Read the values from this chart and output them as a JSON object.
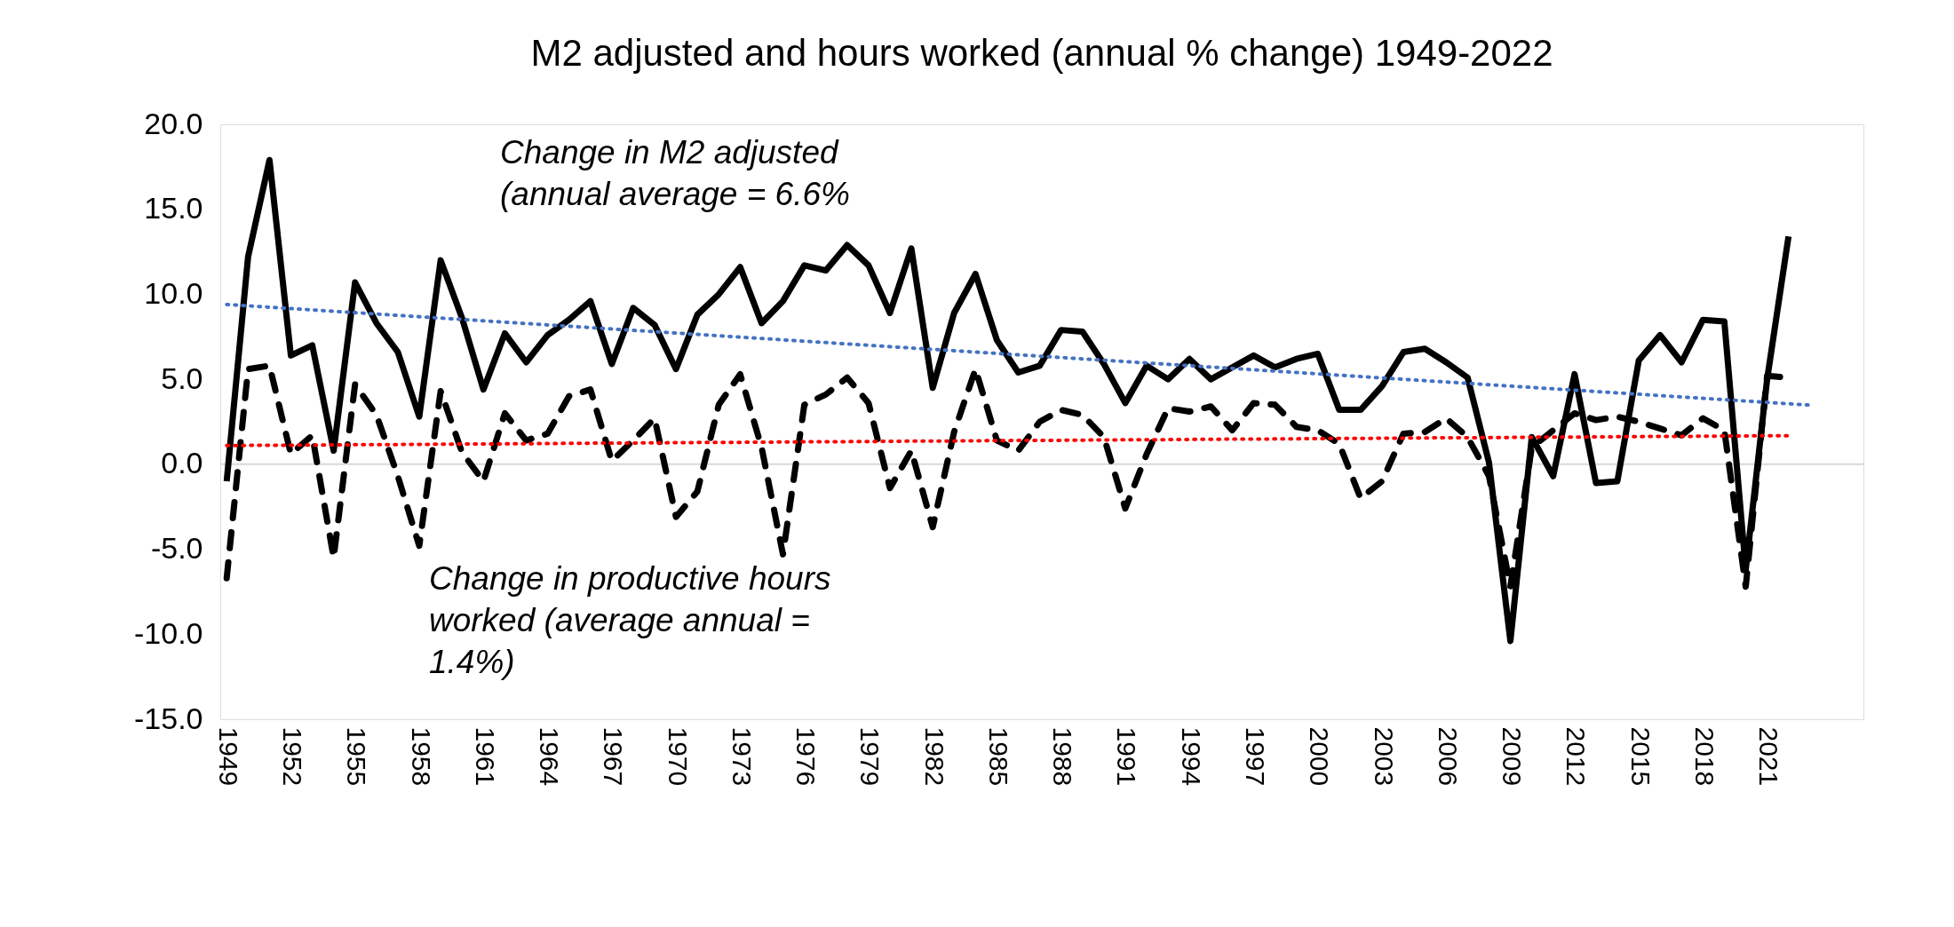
{
  "chart_data": {
    "type": "line",
    "title": "M2 adjusted and hours worked (annual % change) 1949-2022",
    "categories": [
      "1949",
      null,
      null,
      "1952",
      null,
      null,
      "1955",
      null,
      null,
      "1958",
      null,
      null,
      "1961",
      null,
      null,
      "1964",
      null,
      null,
      "1967",
      null,
      null,
      "1970",
      null,
      null,
      "1973",
      null,
      null,
      "1976",
      null,
      null,
      "1979",
      null,
      null,
      "1982",
      null,
      null,
      "1985",
      null,
      null,
      "1988",
      null,
      null,
      "1991",
      null,
      null,
      "1994",
      null,
      null,
      "1997",
      null,
      null,
      "2000",
      null,
      null,
      "2003",
      null,
      null,
      "2006",
      null,
      null,
      "2009",
      null,
      null,
      "2012",
      null,
      null,
      "2015",
      null,
      null,
      "2018",
      null,
      null,
      "2021",
      null,
      null
    ],
    "series": [
      {
        "color": "#000000",
        "line_style": "solid",
        "values": [
          -1.0,
          12.2,
          17.9,
          6.4,
          7.0,
          0.8,
          10.7,
          8.3,
          6.6,
          2.8,
          12.0,
          8.6,
          4.4,
          7.7,
          6.0,
          7.6,
          8.5,
          9.6,
          5.9,
          9.2,
          8.2,
          5.6,
          8.8,
          10.0,
          11.6,
          8.3,
          9.6,
          11.7,
          11.4,
          12.9,
          11.7,
          8.9,
          12.7,
          4.5,
          8.9,
          11.2,
          7.3,
          5.4,
          5.8,
          7.9,
          7.8,
          5.9,
          3.6,
          5.8,
          5.0,
          6.2,
          5.0,
          5.7,
          6.4,
          5.7,
          6.2,
          6.5,
          3.2,
          3.2,
          4.6,
          6.6,
          6.8,
          6.0,
          5.1,
          0.1,
          -10.4,
          1.6,
          -0.7,
          5.3,
          -1.1,
          -1.0,
          6.1,
          7.6,
          6.0,
          8.5,
          8.4,
          -6.2,
          5.0,
          13.4,
          null
        ]
      },
      {
        "color": "#000000",
        "line_style": "dashed",
        "values": [
          -6.7,
          5.6,
          5.8,
          0.6,
          1.7,
          -5.5,
          4.7,
          2.9,
          -0.7,
          -4.8,
          4.3,
          0.7,
          -1.0,
          3.0,
          1.4,
          1.8,
          4.0,
          4.4,
          0.2,
          1.4,
          2.7,
          -3.1,
          -1.6,
          3.5,
          5.3,
          1.0,
          -5.3,
          3.5,
          4.1,
          5.1,
          3.6,
          -1.4,
          0.8,
          -3.7,
          1.9,
          5.6,
          1.4,
          0.8,
          2.5,
          3.2,
          2.9,
          1.6,
          -2.6,
          0.6,
          3.3,
          3.1,
          3.4,
          2.0,
          3.6,
          3.5,
          2.2,
          2.0,
          1.2,
          -2.0,
          -1.0,
          1.8,
          1.9,
          2.7,
          1.6,
          -0.7,
          -7.2,
          1.0,
          2.0,
          3.0,
          2.6,
          2.8,
          2.5,
          2.1,
          1.7,
          2.7,
          2.0,
          -7.2,
          5.2,
          5.1,
          null
        ]
      },
      {
        "color": "#4472c4",
        "line_style": "dotted",
        "values": [
          9.4,
          9.32,
          9.24,
          9.16,
          9.08,
          9.0,
          8.92,
          8.84,
          8.76,
          8.68,
          8.6,
          8.52,
          8.44,
          8.36,
          8.28,
          8.2,
          8.12,
          8.04,
          7.96,
          7.88,
          7.8,
          7.72,
          7.64,
          7.56,
          7.48,
          7.4,
          7.32,
          7.24,
          7.16,
          7.08,
          7.0,
          6.92,
          6.84,
          6.76,
          6.68,
          6.6,
          6.52,
          6.44,
          6.36,
          6.28,
          6.2,
          6.12,
          6.04,
          5.96,
          5.88,
          5.8,
          5.72,
          5.64,
          5.56,
          5.48,
          5.4,
          5.32,
          5.24,
          5.16,
          5.08,
          5.0,
          4.92,
          4.84,
          4.76,
          4.68,
          4.6,
          4.52,
          4.44,
          4.36,
          4.28,
          4.2,
          4.12,
          4.04,
          3.96,
          3.88,
          3.8,
          3.72,
          3.64,
          3.56,
          3.48
        ]
      },
      {
        "color": "#ff0000",
        "line_style": "dotted",
        "values": [
          1.1,
          1.11,
          1.12,
          1.12,
          1.13,
          1.14,
          1.15,
          1.16,
          1.16,
          1.17,
          1.18,
          1.19,
          1.2,
          1.2,
          1.21,
          1.22,
          1.23,
          1.24,
          1.24,
          1.25,
          1.26,
          1.27,
          1.28,
          1.28,
          1.29,
          1.3,
          1.31,
          1.32,
          1.32,
          1.33,
          1.34,
          1.35,
          1.36,
          1.36,
          1.37,
          1.38,
          1.39,
          1.4,
          1.4,
          1.41,
          1.42,
          1.43,
          1.44,
          1.44,
          1.45,
          1.46,
          1.47,
          1.48,
          1.48,
          1.49,
          1.5,
          1.51,
          1.52,
          1.52,
          1.53,
          1.54,
          1.55,
          1.56,
          1.56,
          1.57,
          1.58,
          1.59,
          1.6,
          1.6,
          1.61,
          1.62,
          1.63,
          1.64,
          1.64,
          1.65,
          1.66,
          1.67,
          1.68,
          1.68,
          null
        ]
      }
    ],
    "ylim": [
      -15,
      20
    ],
    "yticks": [
      {
        "value": -15,
        "label": "-15.0"
      },
      {
        "value": -10,
        "label": "-10.0"
      },
      {
        "value": -5,
        "label": "-5.0"
      },
      {
        "value": 0,
        "label": "0.0"
      },
      {
        "value": 5,
        "label": "5.0"
      },
      {
        "value": 10,
        "label": "10.0"
      },
      {
        "value": 15,
        "label": "15.0"
      },
      {
        "value": 20,
        "label": "20.0"
      }
    ],
    "ref_lines": [
      {
        "axis": "y",
        "value": 0,
        "color": "#d9d9d9"
      }
    ],
    "grid": false,
    "annotations": [
      "Change in M2 adjusted\n(annual average = 6.6%",
      "Change in productive hours\nworked (average annual =\n1.4%)"
    ]
  }
}
